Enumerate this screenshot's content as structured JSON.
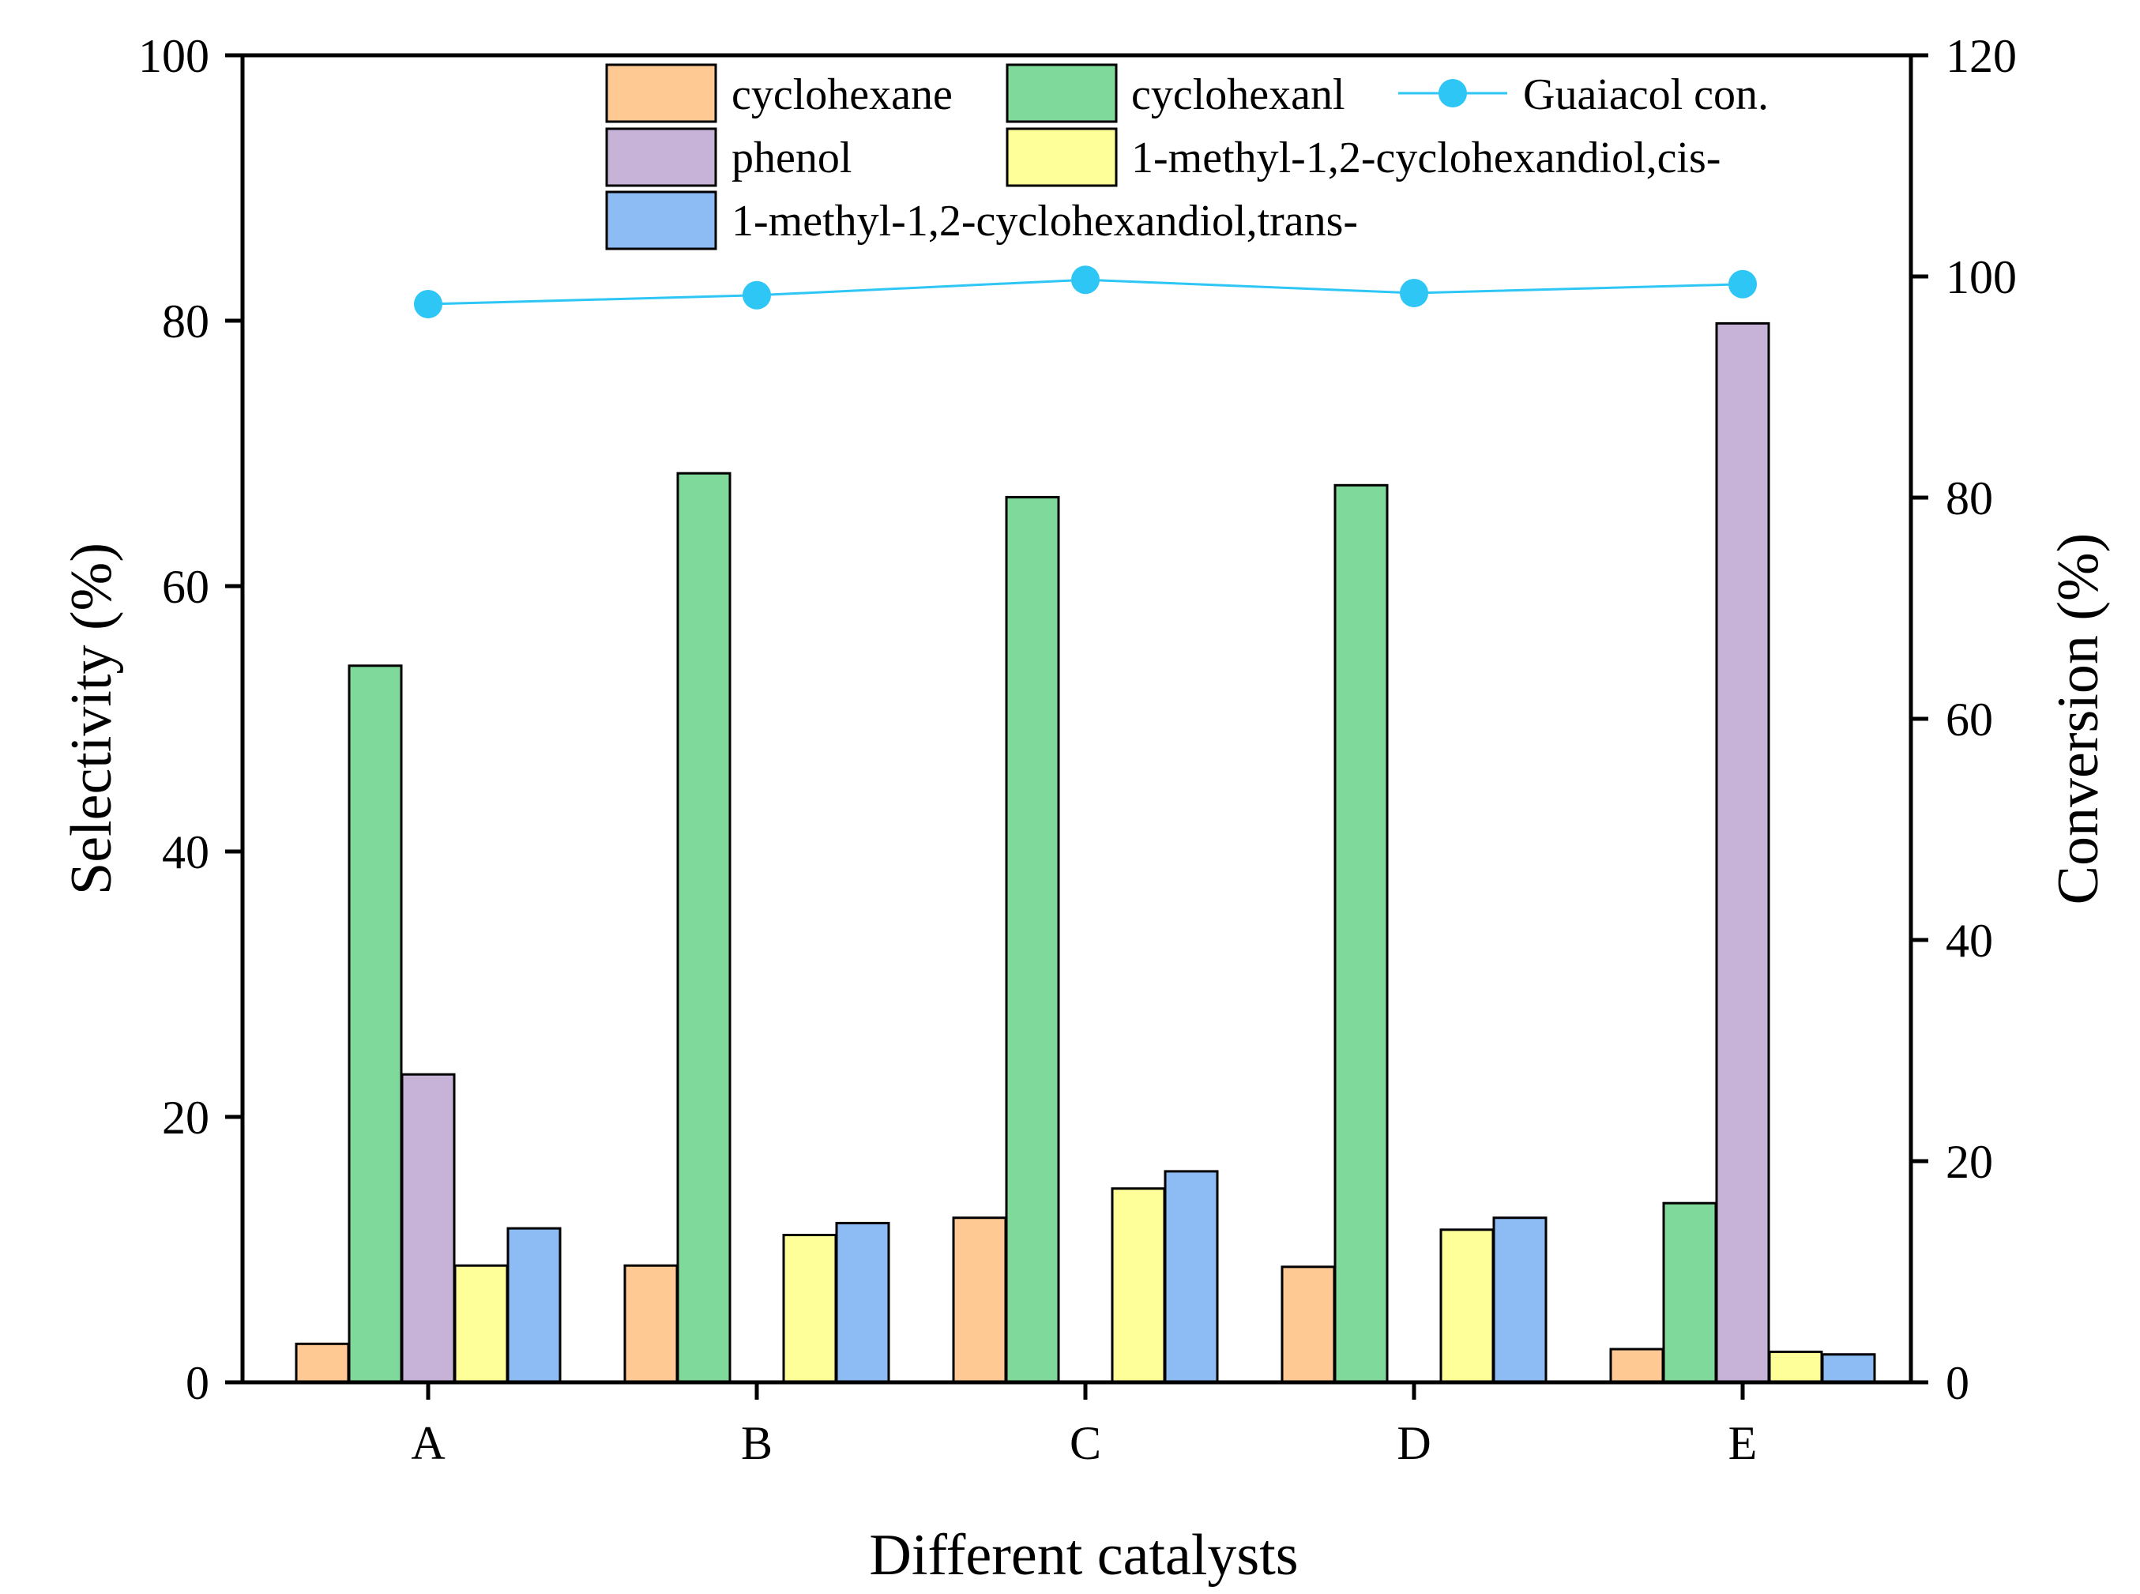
{
  "chart_data": {
    "type": "bar",
    "title": "",
    "xlabel": "Different catalysts",
    "ylabel": "Selectivity (%)",
    "y2label": "Conversion (%)",
    "ylim": [
      0,
      100
    ],
    "y2lim": [
      0,
      120
    ],
    "yticks": [
      "0",
      "20",
      "40",
      "60",
      "80",
      "100"
    ],
    "y2ticks": [
      "0",
      "20",
      "40",
      "60",
      "80",
      "100",
      "120"
    ],
    "categories": [
      "A",
      "B",
      "C",
      "D",
      "E"
    ],
    "series": [
      {
        "name": "cyclohexane",
        "color": "#FFC994",
        "values": [
          2.9,
          8.8,
          12.4,
          8.7,
          2.5
        ]
      },
      {
        "name": "cyclohexanl",
        "color": "#7FD99A",
        "values": [
          54.0,
          68.5,
          66.7,
          67.6,
          13.5
        ]
      },
      {
        "name": "phenol",
        "color": "#C8B3D8",
        "values": [
          23.2,
          0,
          0,
          0,
          79.8
        ]
      },
      {
        "name": "1-methyl-1,2-cyclohexandiol,cis-",
        "color": "#FFFF99",
        "values": [
          8.8,
          11.1,
          14.6,
          11.5,
          2.3
        ]
      },
      {
        "name": "1-methyl-1,2-cyclohexandiol,trans-",
        "color": "#8DBCF5",
        "values": [
          11.6,
          12.0,
          15.9,
          12.4,
          2.1
        ]
      }
    ],
    "line": {
      "name": "Guaiacol con.",
      "color": "#2EC6F5",
      "axis": "right",
      "values": [
        97.5,
        98.3,
        99.7,
        98.5,
        99.3
      ]
    },
    "legend_position": "top"
  }
}
